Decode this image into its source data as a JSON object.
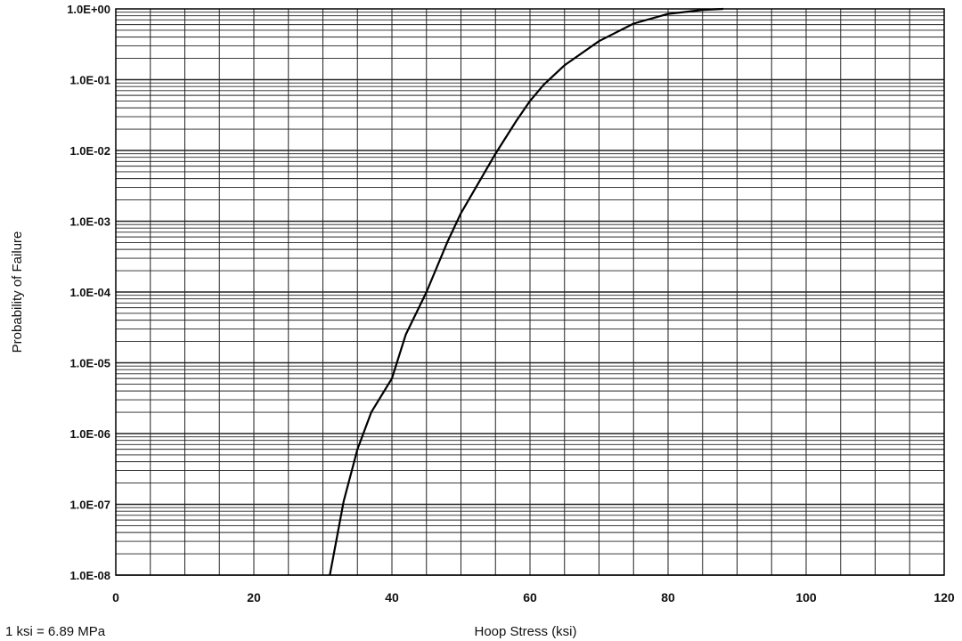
{
  "chart_data": {
    "type": "line",
    "title": "",
    "xlabel": "Hoop Stress (ksi)",
    "ylabel": "Probability of Failure",
    "xlim": [
      0,
      120
    ],
    "ylim": [
      1e-08,
      1
    ],
    "yscale": "log",
    "grid": true,
    "line_color": "#000000",
    "x_ticks": [
      0,
      20,
      40,
      60,
      80,
      100,
      120
    ],
    "x_tick_labels": [
      "0",
      "20",
      "40",
      "60",
      "80",
      "100",
      "120"
    ],
    "y_ticks": [
      1,
      0.1,
      0.01,
      0.001,
      0.0001,
      1e-05,
      1e-06,
      1e-07,
      1e-08
    ],
    "y_tick_labels": [
      "1.0E+00",
      "1.0E-01",
      "1.0E-02",
      "1.0E-03",
      "1.0E-04",
      "1.0E-05",
      "1.0E-06",
      "1.0E-07",
      "1.0E-08"
    ],
    "series": [
      {
        "x": [
          31,
          33,
          35,
          37,
          40,
          42,
          45,
          48,
          50,
          55,
          58,
          60,
          62,
          65,
          70,
          75,
          80,
          85,
          88
        ],
        "y": [
          1e-08,
          1.1e-07,
          6e-07,
          2e-06,
          6e-06,
          2.5e-05,
          0.0001,
          0.0005,
          0.0013,
          0.009,
          0.026,
          0.05,
          0.085,
          0.16,
          0.35,
          0.62,
          0.85,
          0.97,
          1.0
        ]
      }
    ],
    "annotation": "1 ksi = 6.89 MPa"
  }
}
